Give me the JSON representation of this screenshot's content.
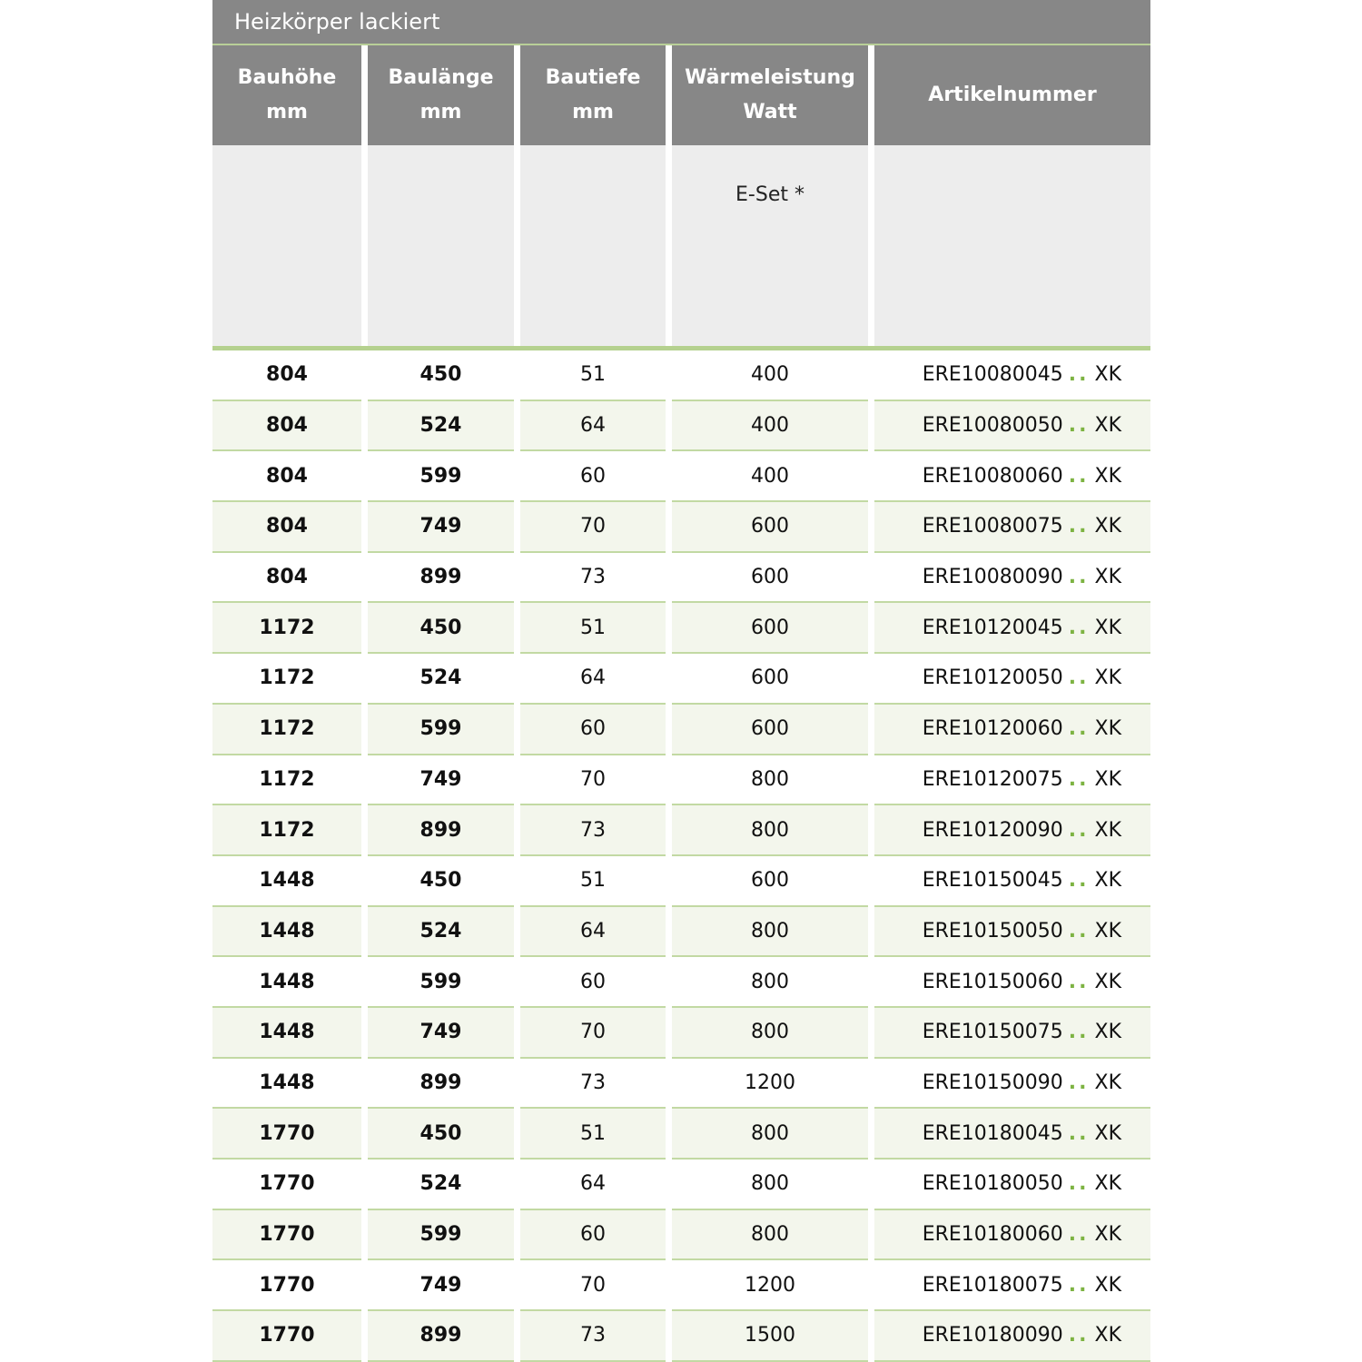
{
  "title": "Heizkörper lackiert",
  "headers": [
    "Bauhöhe\nmm",
    "Baulänge\nmm",
    "Bautiefe\nmm",
    "Wärmeleistung\nWatt",
    "Artikelnummer"
  ],
  "subheader": "E-Set *",
  "colors": {
    "header": "#878787",
    "accent": "#b5d18f",
    "alt_row": "#f3f6ec",
    "dots": "#7db342"
  },
  "rows": [
    [
      "804",
      "450",
      "51",
      "400",
      "ERE10080045",
      "XK"
    ],
    [
      "804",
      "524",
      "64",
      "400",
      "ERE10080050",
      "XK"
    ],
    [
      "804",
      "599",
      "60",
      "400",
      "ERE10080060",
      "XK"
    ],
    [
      "804",
      "749",
      "70",
      "600",
      "ERE10080075",
      "XK"
    ],
    [
      "804",
      "899",
      "73",
      "600",
      "ERE10080090",
      "XK"
    ],
    [
      "1172",
      "450",
      "51",
      "600",
      "ERE10120045",
      "XK"
    ],
    [
      "1172",
      "524",
      "64",
      "600",
      "ERE10120050",
      "XK"
    ],
    [
      "1172",
      "599",
      "60",
      "600",
      "ERE10120060",
      "XK"
    ],
    [
      "1172",
      "749",
      "70",
      "800",
      "ERE10120075",
      "XK"
    ],
    [
      "1172",
      "899",
      "73",
      "800",
      "ERE10120090",
      "XK"
    ],
    [
      "1448",
      "450",
      "51",
      "600",
      "ERE10150045",
      "XK"
    ],
    [
      "1448",
      "524",
      "64",
      "800",
      "ERE10150050",
      "XK"
    ],
    [
      "1448",
      "599",
      "60",
      "800",
      "ERE10150060",
      "XK"
    ],
    [
      "1448",
      "749",
      "70",
      "800",
      "ERE10150075",
      "XK"
    ],
    [
      "1448",
      "899",
      "73",
      "1200",
      "ERE10150090",
      "XK"
    ],
    [
      "1770",
      "450",
      "51",
      "800",
      "ERE10180045",
      "XK"
    ],
    [
      "1770",
      "524",
      "64",
      "800",
      "ERE10180050",
      "XK"
    ],
    [
      "1770",
      "599",
      "60",
      "800",
      "ERE10180060",
      "XK"
    ],
    [
      "1770",
      "749",
      "70",
      "1200",
      "ERE10180075",
      "XK"
    ],
    [
      "1770",
      "899",
      "73",
      "1500",
      "ERE10180090",
      "XK"
    ]
  ],
  "dots": ".."
}
